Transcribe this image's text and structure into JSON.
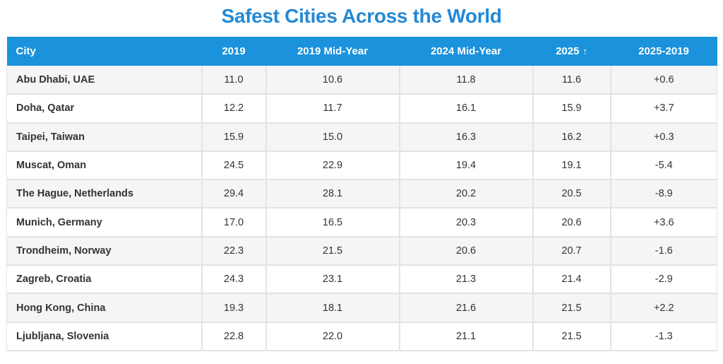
{
  "title": "Safest Cities Across the World",
  "chart_data": {
    "type": "table",
    "title": "Safest Cities Across the World",
    "columns": [
      "City",
      "2019",
      "2019 Mid-Year",
      "2024 Mid-Year",
      "2025",
      "2025-2019"
    ],
    "sort_column": "2025",
    "sort_indicator": "↑",
    "rows": [
      [
        "Abu Dhabi, UAE",
        "11.0",
        "10.6",
        "11.8",
        "11.6",
        "+0.6"
      ],
      [
        "Doha, Qatar",
        "12.2",
        "11.7",
        "16.1",
        "15.9",
        "+3.7"
      ],
      [
        "Taipei, Taiwan",
        "15.9",
        "15.0",
        "16.3",
        "16.2",
        "+0.3"
      ],
      [
        "Muscat, Oman",
        "24.5",
        "22.9",
        "19.4",
        "19.1",
        "-5.4"
      ],
      [
        "The Hague, Netherlands",
        "29.4",
        "28.1",
        "20.2",
        "20.5",
        "-8.9"
      ],
      [
        "Munich, Germany",
        "17.0",
        "16.5",
        "20.3",
        "20.6",
        "+3.6"
      ],
      [
        "Trondheim, Norway",
        "22.3",
        "21.5",
        "20.6",
        "20.7",
        "-1.6"
      ],
      [
        "Zagreb, Croatia",
        "24.3",
        "23.1",
        "21.3",
        "21.4",
        "-2.9"
      ],
      [
        "Hong Kong, China",
        "19.3",
        "18.1",
        "21.6",
        "21.5",
        "+2.2"
      ],
      [
        "Ljubljana, Slovenia",
        "22.8",
        "22.0",
        "21.1",
        "21.5",
        "-1.3"
      ]
    ]
  },
  "colors": {
    "title": "#2389d6",
    "header_bg": "#1b92dc",
    "header_text": "#ffffff",
    "row_odd": "#f5f5f5",
    "row_even": "#ffffff",
    "grid": "#e3e3e3"
  }
}
